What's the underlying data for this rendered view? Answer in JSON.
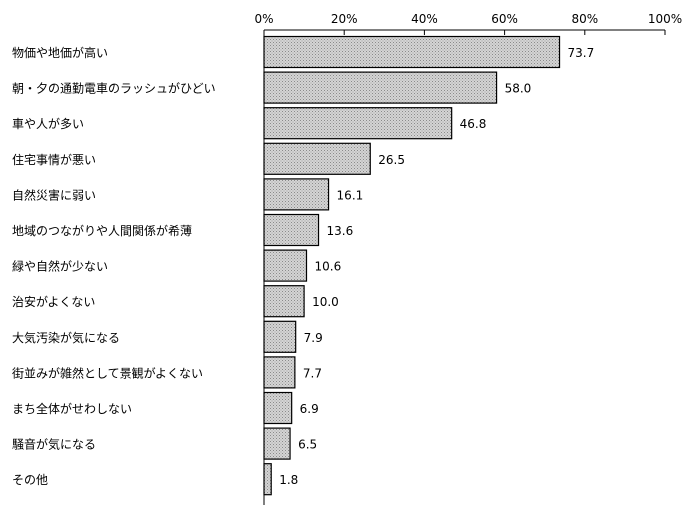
{
  "chart_data": {
    "type": "bar",
    "orientation": "horizontal",
    "categories": [
      "物価や地価が高い",
      "朝・夕の通勤電車のラッシュがひどい",
      "車や人が多い",
      "住宅事情が悪い",
      "自然災害に弱い",
      "地域のつながりや人間関係が希薄",
      "緑や自然が少ない",
      "治安がよくない",
      "大気汚染が気になる",
      "街並みが雑然として景観がよくない",
      "まち全体がせわしない",
      "騒音が気になる",
      "その他"
    ],
    "values": [
      73.7,
      58.0,
      46.8,
      26.5,
      16.1,
      13.6,
      10.6,
      10.0,
      7.9,
      7.7,
      6.9,
      6.5,
      1.8
    ],
    "value_labels": [
      "73.7",
      "58.0",
      "46.8",
      "26.5",
      "16.1",
      "13.6",
      "10.6",
      "10.0",
      "7.9",
      "7.7",
      "6.9",
      "6.5",
      "1.8"
    ],
    "xlim": [
      0,
      100
    ],
    "x_ticks": [
      "0%",
      "20%",
      "40%",
      "60%",
      "80%",
      "100%"
    ],
    "axis_position": "top",
    "grid": false,
    "bar_color": "#c8c8c8",
    "bar_edge_color": "#000000"
  }
}
